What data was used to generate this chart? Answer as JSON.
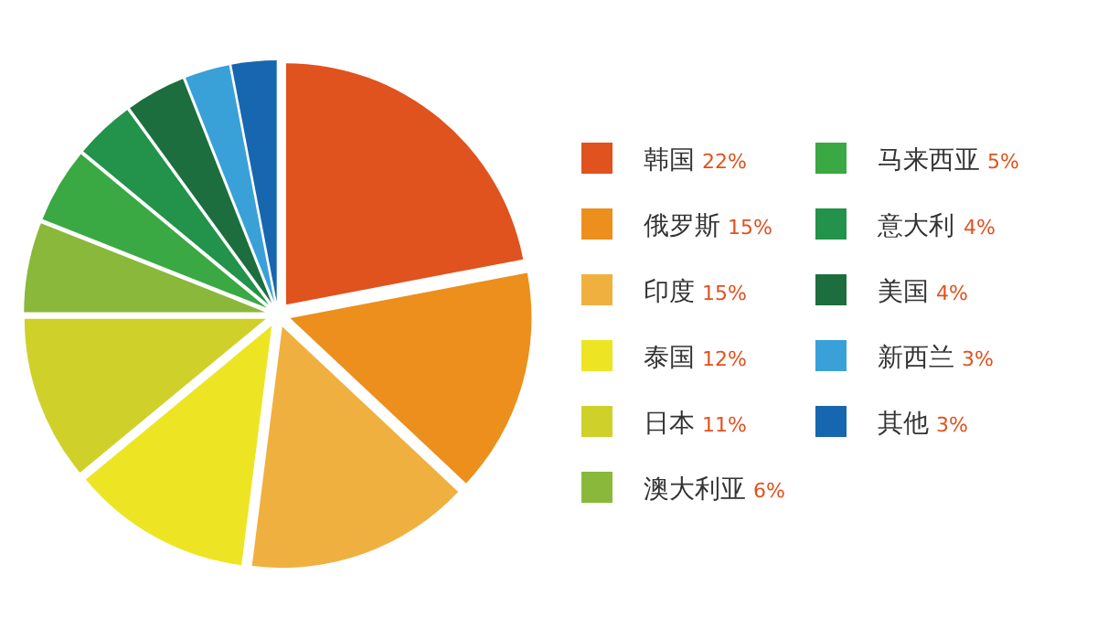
{
  "chart_data": {
    "type": "pie",
    "categories": [
      "韩国",
      "俄罗斯",
      "印度",
      "泰国",
      "日本",
      "澳大利亚",
      "马来西亚",
      "意大利",
      "美国",
      "新西兰",
      "其他"
    ],
    "values": [
      22,
      15,
      15,
      12,
      11,
      6,
      5,
      4,
      4,
      3,
      3
    ],
    "value_labels": [
      "22%",
      "15%",
      "15%",
      "12%",
      "11%",
      "6%",
      "5%",
      "4%",
      "4%",
      "3%",
      "3%"
    ],
    "colors": [
      "#e0521e",
      "#ec8f1c",
      "#f0b040",
      "#ede524",
      "#cfd12a",
      "#8ab83a",
      "#3aa843",
      "#23924a",
      "#1c6e3e",
      "#3aa0d8",
      "#1666b0"
    ],
    "legend": "right"
  }
}
